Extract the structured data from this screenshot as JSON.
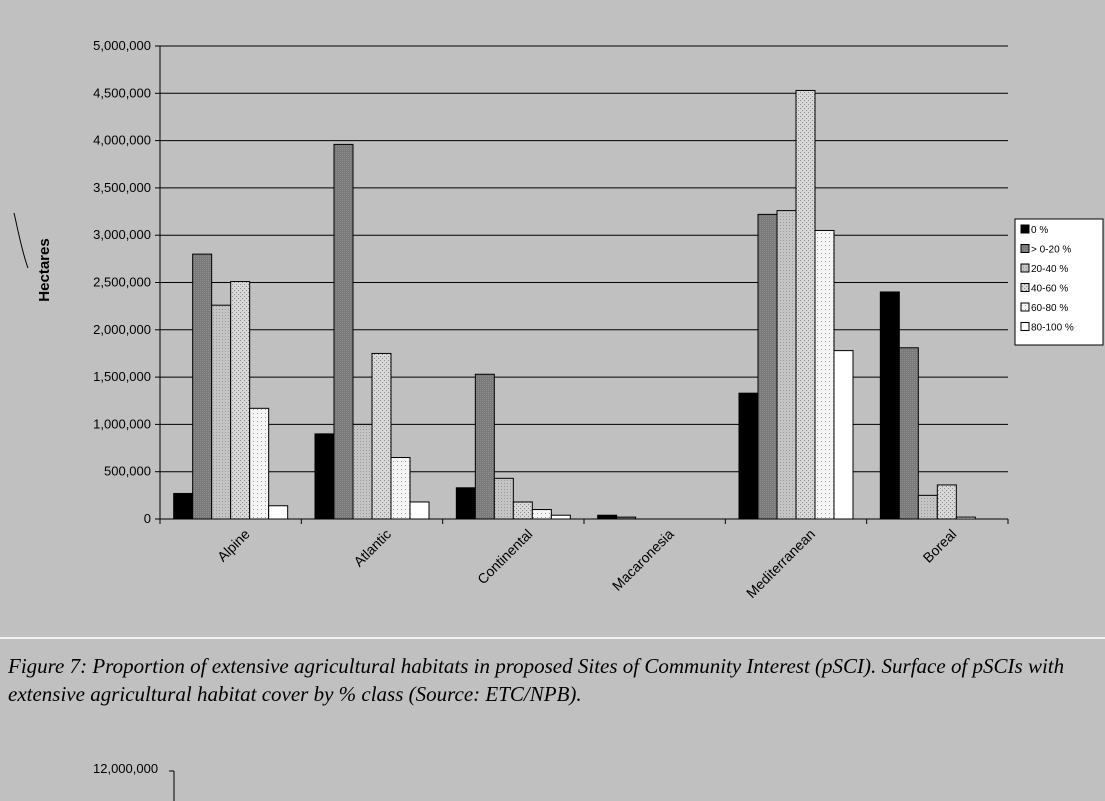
{
  "chart_data": {
    "type": "bar",
    "title": "",
    "xlabel": "",
    "ylabel": "Hectares",
    "ylim": [
      0,
      5000000
    ],
    "yticks": [
      "0",
      "500,000",
      "1,000,000",
      "1,500,000",
      "2,000,000",
      "2,500,000",
      "3,000,000",
      "3,500,000",
      "4,000,000",
      "4,500,000",
      "5,000,000"
    ],
    "grid": true,
    "legend_position": "right",
    "categories": [
      "Alpine",
      "Atlantic",
      "Continental",
      "Macaronesia",
      "Mediterranean",
      "Boreal"
    ],
    "series": [
      {
        "name": "0 %",
        "color": "#000000",
        "values": [
          270000,
          900000,
          330000,
          40000,
          1330000,
          2400000
        ]
      },
      {
        "name": "> 0-20 %",
        "color": "#808080",
        "values": [
          2800000,
          3960000,
          1530000,
          20000,
          3220000,
          1810000
        ]
      },
      {
        "name": "20-40 %",
        "color": "#b8b8b8",
        "values": [
          2260000,
          1000000,
          430000,
          0,
          3260000,
          250000
        ]
      },
      {
        "name": "40-60 %",
        "color": "#d0d0d0",
        "values": [
          2510000,
          1750000,
          180000,
          0,
          4530000,
          360000
        ]
      },
      {
        "name": "60-80 %",
        "color": "#ececec",
        "values": [
          1170000,
          650000,
          100000,
          0,
          3050000,
          20000
        ]
      },
      {
        "name": "80-100 %",
        "color": "#ffffff",
        "values": [
          140000,
          180000,
          40000,
          0,
          1780000,
          0
        ]
      }
    ]
  },
  "caption": "Figure 7: Proportion of extensive agricultural habitats in proposed Sites of Community Interest (pSCI). Surface of pSCIs with extensive agricultural habitat cover by % class (Source: ETC/NPB).",
  "next_chart_top_tick": "12,000,000"
}
